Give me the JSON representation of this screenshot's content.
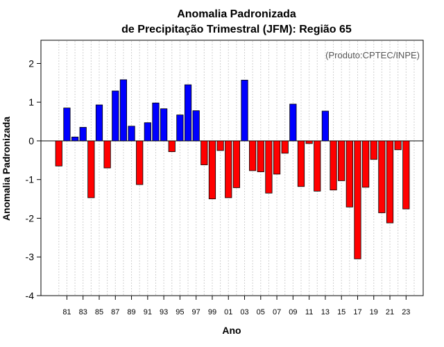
{
  "chart_data": {
    "type": "bar",
    "title_line1": "Anomalia Padronizada",
    "title_line2": "de Precipitação Trimestral (JFM): Região 65",
    "annotation": "(Produto:CPTEC/INPE)",
    "xlabel": "Ano",
    "ylabel": "Anomalia Padronizada",
    "ylim": [
      -4,
      2.6
    ],
    "yticks": [
      "-4",
      "-3",
      "-2",
      "-1",
      "0",
      "1",
      "2"
    ],
    "years": [
      1980,
      1981,
      1982,
      1983,
      1984,
      1985,
      1986,
      1987,
      1988,
      1989,
      1990,
      1991,
      1992,
      1993,
      1994,
      1995,
      1996,
      1997,
      1998,
      1999,
      2000,
      2001,
      2002,
      2003,
      2004,
      2005,
      2006,
      2007,
      2008,
      2009,
      2010,
      2011,
      2012,
      2013,
      2014,
      2015,
      2016,
      2017,
      2018,
      2019,
      2020,
      2021,
      2022,
      2023,
      2024
    ],
    "xtick_labels": [
      "81",
      "83",
      "85",
      "87",
      "89",
      "91",
      "93",
      "95",
      "97",
      "99",
      "01",
      "03",
      "05",
      "07",
      "09",
      "11",
      "13",
      "15",
      "17",
      "19",
      "21",
      "23"
    ],
    "values": [
      -0.65,
      0.85,
      0.1,
      0.35,
      -1.47,
      0.93,
      -0.7,
      1.29,
      1.58,
      0.38,
      -1.13,
      0.47,
      0.98,
      0.83,
      -0.28,
      0.67,
      1.45,
      0.78,
      -0.62,
      -1.5,
      -0.25,
      -1.47,
      -1.21,
      1.57,
      -0.77,
      -0.8,
      -1.35,
      -0.86,
      -0.32,
      0.95,
      -1.18,
      -0.07,
      -1.3,
      0.77,
      -1.27,
      -1.03,
      -1.71,
      -3.05,
      -1.2,
      -0.48,
      -1.86,
      -2.12,
      -0.23,
      -1.76,
      0
    ],
    "positive_color": "#0000ff",
    "negative_color": "#ff0000",
    "grid": true
  }
}
